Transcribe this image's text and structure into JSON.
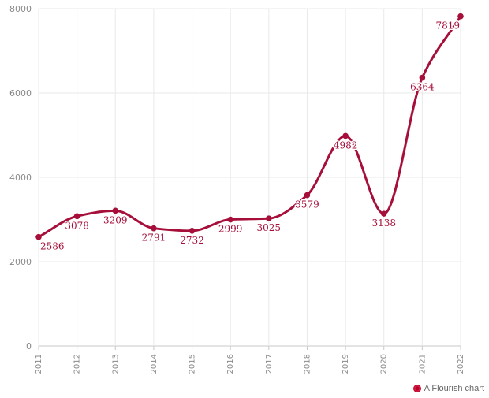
{
  "chart_data": {
    "type": "line",
    "x": [
      "2011",
      "2012",
      "2013",
      "2014",
      "2015",
      "2016",
      "2017",
      "2018",
      "2019",
      "2020",
      "2021",
      "2022"
    ],
    "series": [
      {
        "values": [
          2586,
          3078,
          3209,
          2791,
          2732,
          2999,
          3025,
          3579,
          4982,
          3138,
          6364,
          7819
        ]
      }
    ],
    "ylim": [
      0,
      8000
    ],
    "yticks": [
      0,
      2000,
      4000,
      6000,
      8000
    ],
    "grid": true,
    "smooth": true,
    "data_labels": true,
    "line_color": "#a50f3a"
  },
  "credit": {
    "label": "A Flourish chart"
  },
  "icons": {
    "credit_icon": "flourish-logo-icon"
  }
}
